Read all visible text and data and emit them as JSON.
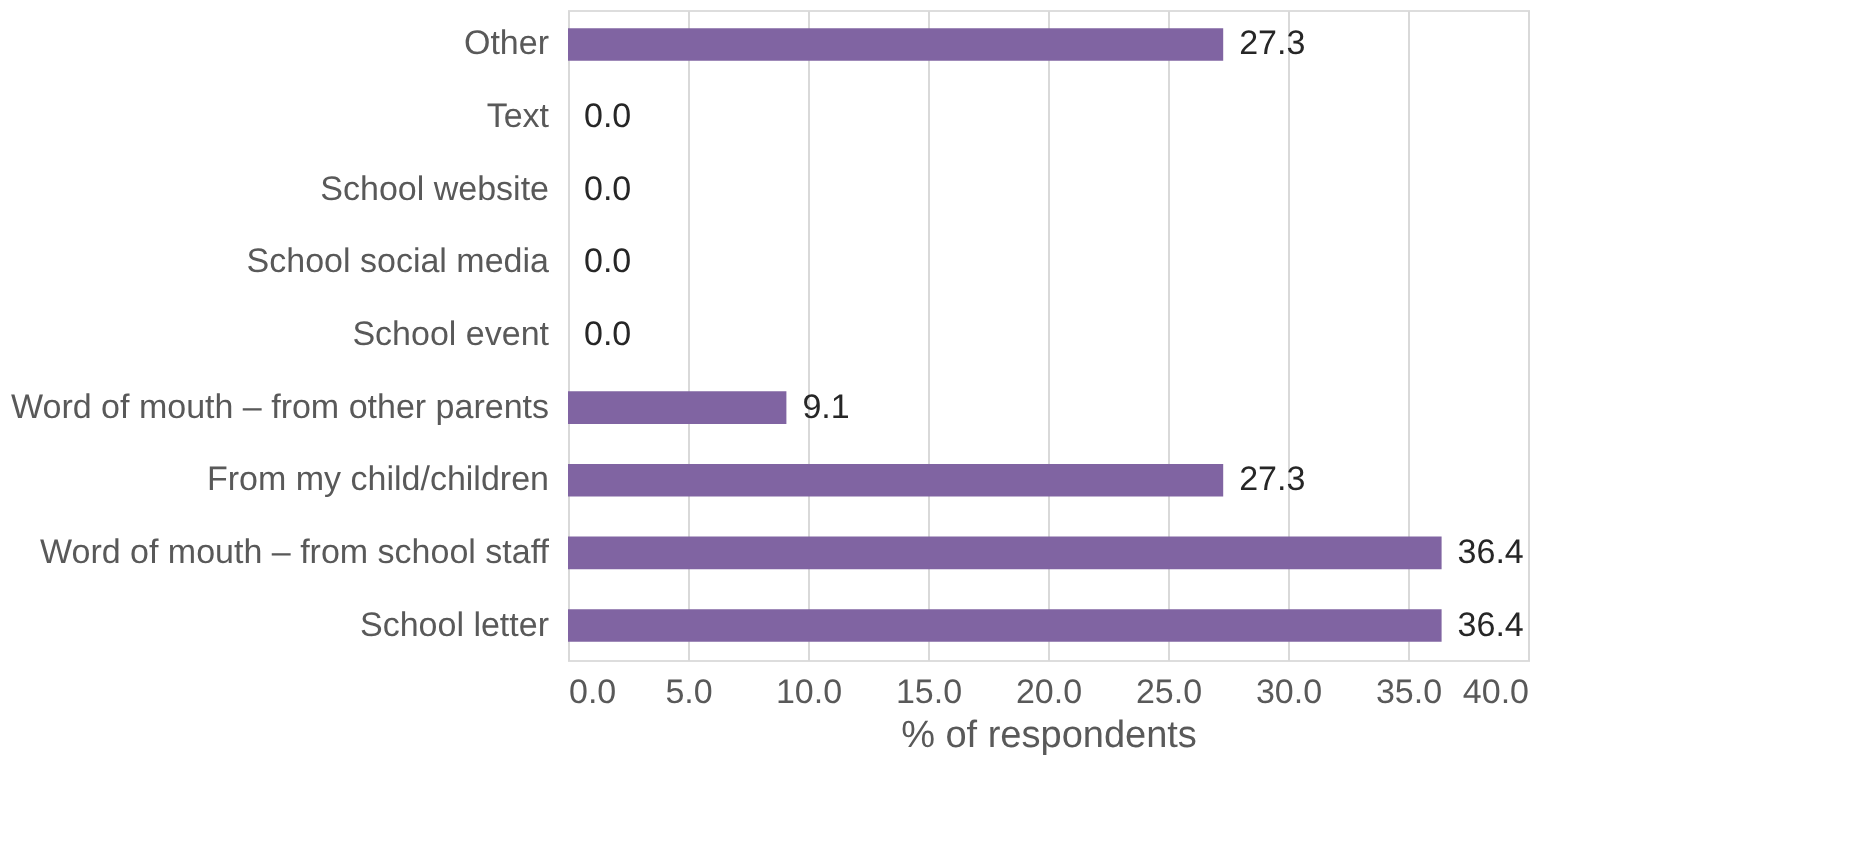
{
  "chart_data": {
    "type": "bar",
    "orientation": "horizontal",
    "xlabel": "% of respondents",
    "categories": [
      "Other",
      "Text",
      "School website",
      "School social media",
      "School event",
      "Word of mouth – from other parents",
      "From my child/children",
      "Word of mouth – from school staff",
      "School letter"
    ],
    "values": [
      27.3,
      0,
      0,
      0,
      0,
      9.1,
      27.3,
      36.4,
      36.4
    ],
    "value_labels": [
      "27.3",
      "0.0",
      "0.0",
      "0.0",
      "0.0",
      "9.1",
      "27.3",
      "36.4",
      "36.4"
    ],
    "color": "#8064a2",
    "xlim": [
      0,
      40
    ],
    "xticks": [
      {
        "value": 0,
        "label": "0.0"
      },
      {
        "value": 5,
        "label": "5.0"
      },
      {
        "value": 10,
        "label": "10.0"
      },
      {
        "value": 15,
        "label": "15.0"
      },
      {
        "value": 20,
        "label": "20.0"
      },
      {
        "value": 25,
        "label": "25.0"
      },
      {
        "value": 30,
        "label": "30.0"
      },
      {
        "value": 35,
        "label": "35.0"
      },
      {
        "value": 40,
        "label": "40.0"
      }
    ],
    "grid": "x"
  }
}
